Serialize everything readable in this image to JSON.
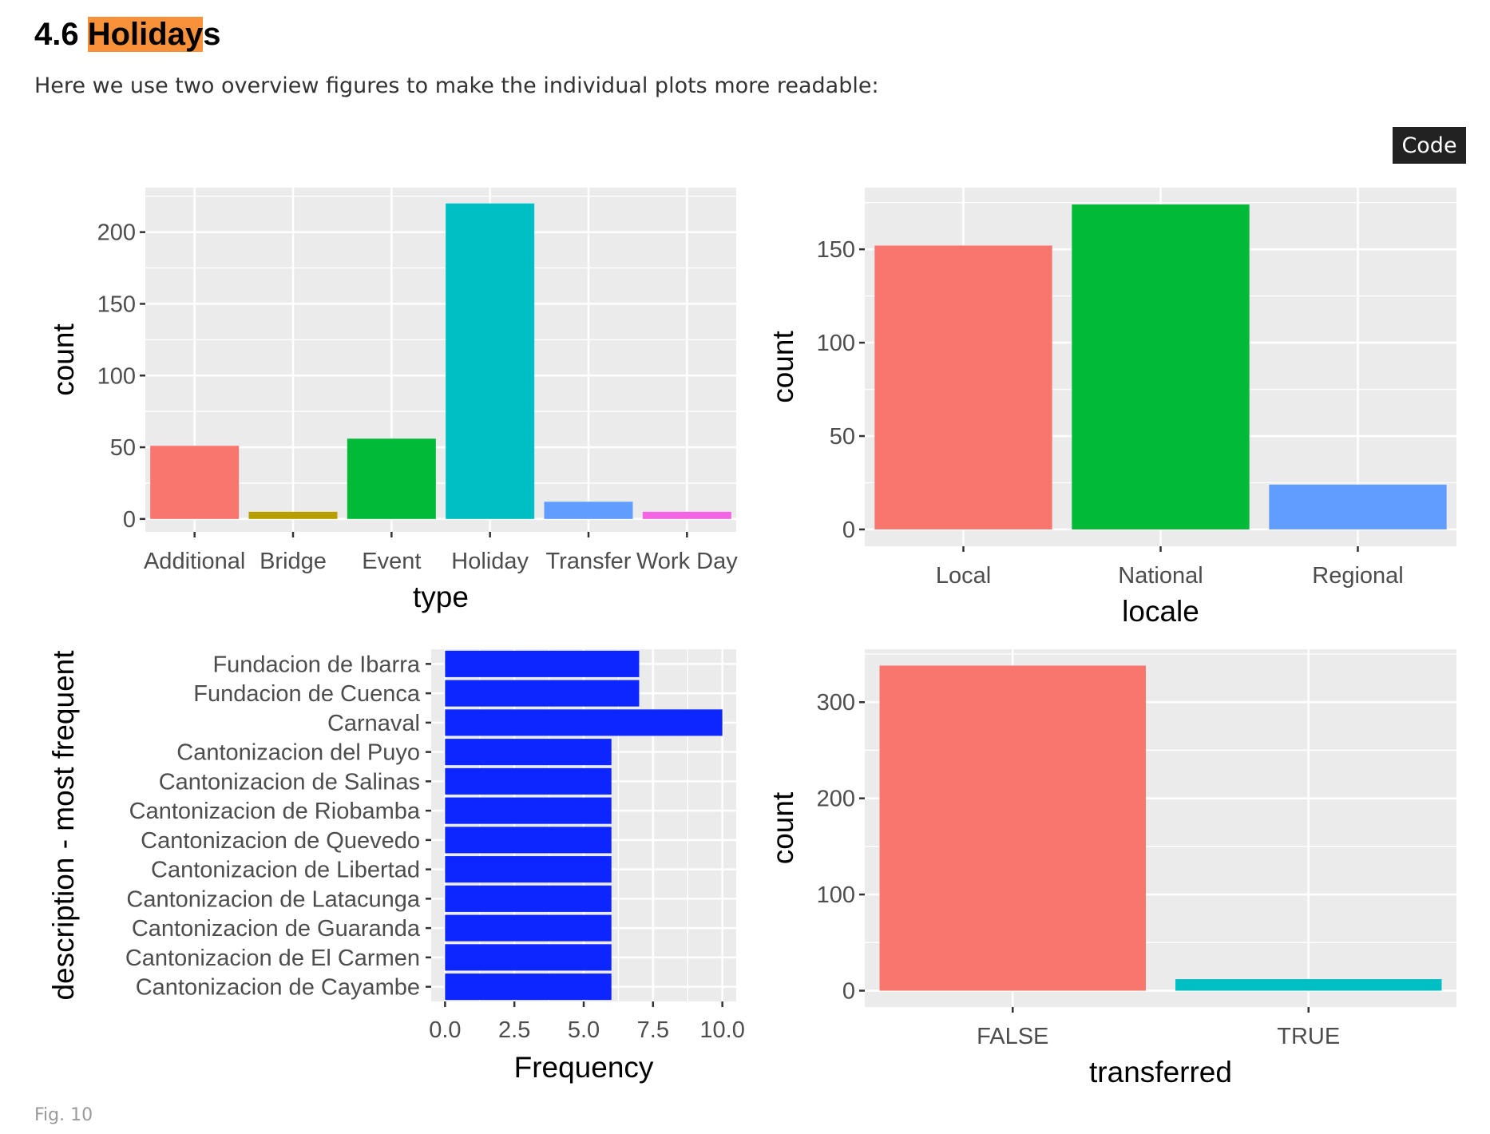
{
  "heading": {
    "number": "4.6",
    "highlighted": "Holiday",
    "rest": "s"
  },
  "intro": "Here we use two overview figures to make the individual plots more readable:",
  "code_button": "Code",
  "caption": "Fig. 10",
  "colors": {
    "highlight": "#f7923a",
    "panel_bg": "#ebebeb",
    "grid": "#ffffff",
    "code_button_bg": "#222222"
  },
  "chart_data": [
    {
      "type": "bar",
      "categories": [
        "Additional",
        "Bridge",
        "Event",
        "Holiday",
        "Transfer",
        "Work Day"
      ],
      "tick_labels": [
        "Additional",
        "Bridge",
        "Event",
        "Holiday",
        "Transfer",
        "Work Day"
      ],
      "values": [
        51,
        5,
        56,
        220,
        12,
        5
      ],
      "colors": [
        "#F8766D",
        "#B79F00",
        "#00BA38",
        "#00BFC4",
        "#619CFF",
        "#F564E3"
      ],
      "xlabel": "type",
      "ylabel": "count",
      "ylim": [
        -9,
        231
      ],
      "yticks": [
        0,
        50,
        100,
        150,
        200
      ],
      "grid": true
    },
    {
      "type": "bar",
      "categories": [
        "Local",
        "National",
        "Regional"
      ],
      "values": [
        152,
        174,
        24
      ],
      "colors": [
        "#F8766D",
        "#00BA38",
        "#619CFF"
      ],
      "xlabel": "locale",
      "ylabel": "count",
      "ylim": [
        -9,
        183
      ],
      "yticks": [
        0,
        50,
        100,
        150
      ],
      "grid": true
    },
    {
      "type": "bar",
      "orientation": "horizontal",
      "categories": [
        "Fundacion de Ibarra",
        "Fundacion de Cuenca",
        "Carnaval",
        "Cantonizacion del Puyo",
        "Cantonizacion de Salinas",
        "Cantonizacion de Riobamba",
        "Cantonizacion de Quevedo",
        "Cantonizacion de Libertad",
        "Cantonizacion de Latacunga",
        "Cantonizacion de Guaranda",
        "Cantonizacion de El Carmen",
        "Cantonizacion de Cayambe"
      ],
      "values": [
        7,
        7,
        10,
        6,
        6,
        6,
        6,
        6,
        6,
        6,
        6,
        6
      ],
      "color": "#0d26ff",
      "xlabel": "Frequency",
      "ylabel": "description - most frequent",
      "xlim": [
        -0.5,
        10.5
      ],
      "xticks": [
        0,
        2.5,
        5,
        7.5,
        10
      ],
      "xtick_labels": [
        "0.0",
        "2.5",
        "5.0",
        "7.5",
        "10.0"
      ],
      "grid": true
    },
    {
      "type": "bar",
      "categories": [
        "FALSE",
        "TRUE"
      ],
      "values": [
        338,
        12
      ],
      "colors": [
        "#F8766D",
        "#00BFC4"
      ],
      "xlabel": "transferred",
      "ylabel": "count",
      "ylim": [
        -17,
        355
      ],
      "yticks": [
        0,
        100,
        200,
        300
      ],
      "grid": true
    }
  ]
}
